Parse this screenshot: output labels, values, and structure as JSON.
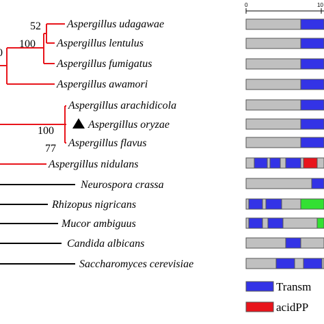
{
  "colors": {
    "aspergillus_clade": "#e8141b",
    "outgroup": "#000000",
    "protein_bar": "#c0c0c0",
    "transmembrane": "#3333e6",
    "acidppc": "#e8141b",
    "green_domain": "#33e033"
  },
  "scale": {
    "ticks": [
      "0",
      "10"
    ]
  },
  "bootstrap": [
    "52",
    "100",
    "100",
    "77",
    "0"
  ],
  "marker": {
    "shape": "filled-triangle",
    "taxon": "Aspergillus oryzae"
  },
  "taxa": [
    {
      "name": "Aspergillus udagawae",
      "clade": "aspergillus"
    },
    {
      "name": "Aspergillus lentulus",
      "clade": "aspergillus"
    },
    {
      "name": "Aspergillus fumigatus",
      "clade": "aspergillus"
    },
    {
      "name": "Aspergillus awamori",
      "clade": "aspergillus"
    },
    {
      "name": "Aspergillus arachidicola",
      "clade": "aspergillus"
    },
    {
      "name": "Aspergillus oryzae",
      "clade": "aspergillus"
    },
    {
      "name": "Aspergillus flavus",
      "clade": "aspergillus"
    },
    {
      "name": "Aspergillus nidulans",
      "clade": "aspergillus"
    },
    {
      "name": "Neurospora crassa",
      "clade": "outgroup"
    },
    {
      "name": "Rhizopus nigricans",
      "clade": "outgroup"
    },
    {
      "name": "Mucor ambiguus",
      "clade": "outgroup"
    },
    {
      "name": "Candida albicans",
      "clade": "outgroup"
    },
    {
      "name": "Saccharomyces cerevisiae",
      "clade": "outgroup"
    }
  ],
  "legend": [
    {
      "label": "Transm",
      "color_key": "transmembrane"
    },
    {
      "label": "acidPP",
      "color_key": "acidppc"
    }
  ]
}
